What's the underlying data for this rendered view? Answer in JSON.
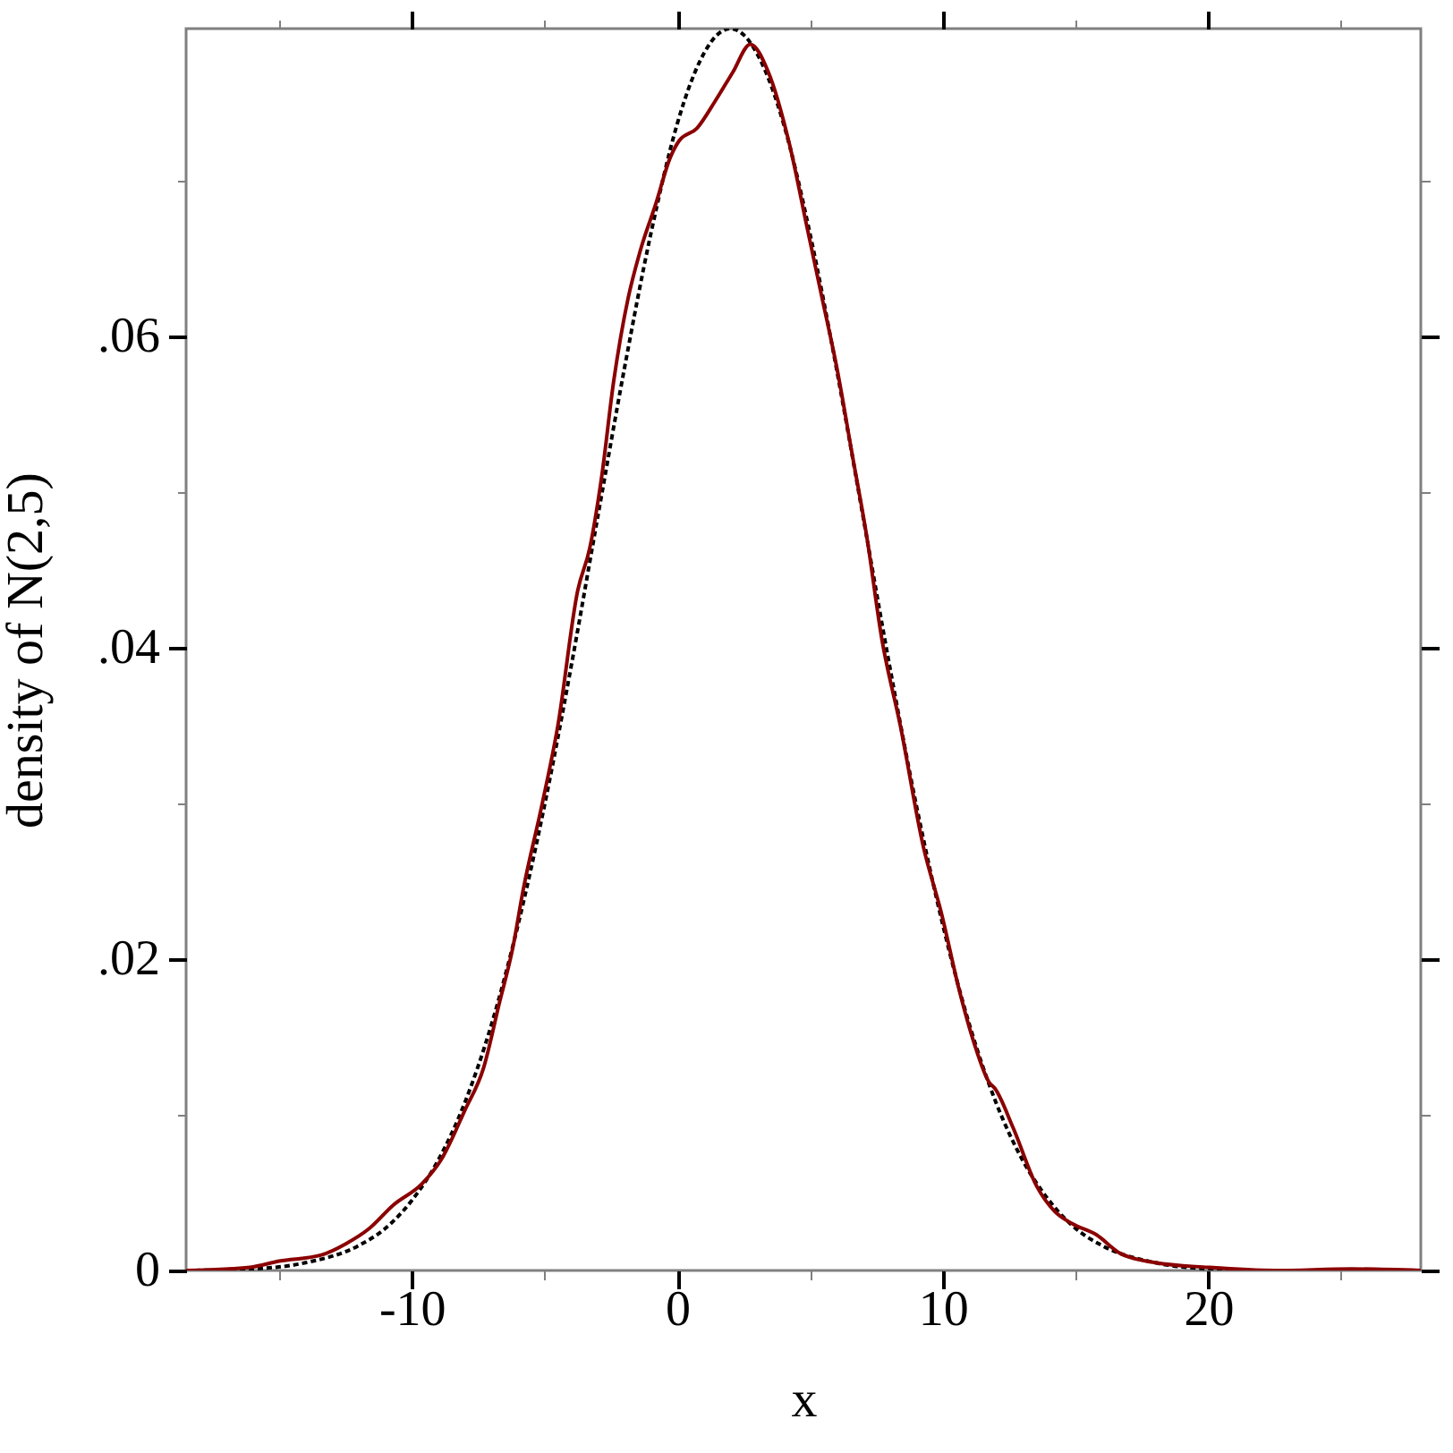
{
  "chart_data": {
    "type": "line",
    "xlabel": "x",
    "ylabel": "density of N(2,5)",
    "xlim": [
      -18.5,
      28
    ],
    "ylim": [
      0,
      0.0798
    ],
    "xticks": [
      {
        "value": -15,
        "label": null
      },
      -10,
      {
        "value": -5,
        "label": null
      },
      0,
      {
        "value": 5,
        "label": null
      },
      10,
      {
        "value": 15,
        "label": null
      },
      20,
      {
        "value": 25,
        "label": null
      }
    ],
    "yticks": [
      0,
      {
        "value": 0.01,
        "label": null
      },
      {
        "value": 0.02,
        "label": ".02"
      },
      {
        "value": 0.03,
        "label": null
      },
      {
        "value": 0.04,
        "label": ".04"
      },
      {
        "value": 0.05,
        "label": null
      },
      {
        "value": 0.06,
        "label": ".06"
      },
      {
        "value": 0.07,
        "label": null
      }
    ],
    "series": [
      {
        "color": "#000000",
        "line_style": "dotted",
        "x": [
          -18.5,
          -16,
          -14,
          -12,
          -11,
          -10,
          -9,
          -8,
          -7,
          -6,
          -5,
          -4,
          -3,
          -2,
          -1,
          0,
          0.5,
          1,
          1.5,
          2,
          2.5,
          3,
          3.5,
          4,
          5,
          6,
          7,
          8,
          9,
          10,
          11,
          12,
          13,
          14,
          15,
          16,
          18,
          20,
          22,
          28
        ],
        "values": [
          0.0,
          0.0001,
          0.0005,
          0.0016,
          0.0027,
          0.0045,
          0.0071,
          0.0108,
          0.0158,
          0.0222,
          0.0299,
          0.0388,
          0.0484,
          0.0579,
          0.0666,
          0.0737,
          0.0763,
          0.0782,
          0.0794,
          0.0798,
          0.0794,
          0.0782,
          0.0763,
          0.0737,
          0.0666,
          0.0579,
          0.0484,
          0.0388,
          0.0299,
          0.0222,
          0.0158,
          0.0108,
          0.0071,
          0.0045,
          0.0027,
          0.0016,
          0.0005,
          0.0001,
          0.0,
          0.0
        ]
      },
      {
        "color": "#8b0000",
        "line_style": "solid",
        "x": [
          -18.5,
          -16.1,
          -15.0,
          -13.4,
          -12.5,
          -11.6,
          -10.7,
          -9.6,
          -8.9,
          -8.0,
          -7.3,
          -6.7,
          -6.2,
          -5.8,
          -5.1,
          -4.5,
          -3.75,
          -3.3,
          -2.85,
          -2.4,
          -1.85,
          -1.4,
          -0.8,
          -0.27,
          0.07,
          0.74,
          1.41,
          2.09,
          2.75,
          3.43,
          4.22,
          4.89,
          5.45,
          6.02,
          6.58,
          7.14,
          7.7,
          8.4,
          9.27,
          9.94,
          10.62,
          11.18,
          11.74,
          11.96,
          12.64,
          13.54,
          14.21,
          14.88,
          15.78,
          16.68,
          18.0,
          20.0,
          22.5,
          25.4,
          28
        ],
        "values": [
          0.0,
          0.0002,
          0.0006,
          0.001,
          0.0017,
          0.0027,
          0.0042,
          0.0056,
          0.0071,
          0.0103,
          0.013,
          0.0172,
          0.0207,
          0.0245,
          0.0299,
          0.035,
          0.0437,
          0.0464,
          0.051,
          0.0571,
          0.0625,
          0.0655,
          0.0686,
          0.0715,
          0.0726,
          0.0734,
          0.0751,
          0.077,
          0.0788,
          0.077,
          0.0724,
          0.067,
          0.0625,
          0.0579,
          0.0525,
          0.0471,
          0.0406,
          0.035,
          0.0272,
          0.023,
          0.018,
          0.0146,
          0.0121,
          0.0117,
          0.0092,
          0.0054,
          0.0038,
          0.003,
          0.0023,
          0.0011,
          0.0005,
          0.0002,
          0.0,
          0.0001,
          0.0
        ]
      }
    ]
  }
}
